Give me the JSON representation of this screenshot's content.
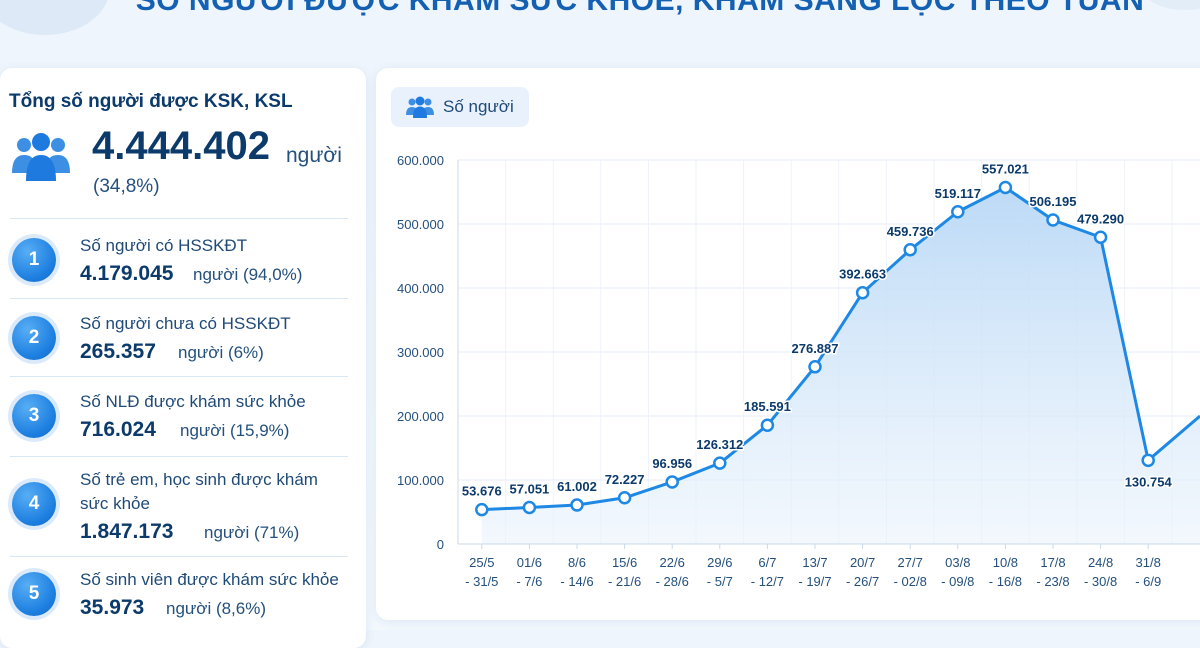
{
  "page_title": "SỐ NGƯỜI ĐƯỢC KHÁM SỨC KHỎE, KHÁM SÀNG LỌC THEO TUẦN",
  "summary": {
    "heading": "Tổng số người được KSK, KSL",
    "icon": "people-group-icon",
    "total_value": "4.444.402",
    "total_unit": "người",
    "total_percent": "(34,8%)"
  },
  "stats": [
    {
      "number": "1",
      "label": "Số người có HSSKĐT",
      "value": "4.179.045",
      "unit": "người (94,0%)"
    },
    {
      "number": "2",
      "label": "Số người chưa có HSSKĐT",
      "value": "265.357",
      "unit": "người (6%)"
    },
    {
      "number": "3",
      "label": "Số NLĐ được khám sức khỏe",
      "value": "716.024",
      "unit": "người (15,9%)"
    },
    {
      "number": "4",
      "label": "Số trẻ em, học sinh được khám sức khỏe",
      "value": "1.847.173",
      "unit": "người (71%)"
    },
    {
      "number": "5",
      "label": "Số sinh viên được khám sức khỏe",
      "value": "35.973",
      "unit": "người (8,6%)"
    }
  ],
  "colors": {
    "accent": "#1e88e5",
    "title": "#1461b3",
    "text_dark": "#0b3a6b",
    "area_fill": "#cfe4f8"
  },
  "chart_data": {
    "type": "line",
    "title": "SỐ NGƯỜI ĐƯỢC KHÁM SỨC KHỎE, KHÁM SÀNG LỌC THEO TUẦN",
    "xlabel": "",
    "ylabel": "",
    "ylim": [
      0,
      600000
    ],
    "yticks": [
      0,
      100000,
      200000,
      300000,
      400000,
      500000,
      600000
    ],
    "ytick_labels": [
      "0",
      "100.000",
      "200.000",
      "300.000",
      "400.000",
      "500.000",
      "600.000"
    ],
    "grid": true,
    "legend": {
      "label": "Số người",
      "placement": "top-left"
    },
    "categories": [
      [
        "25/5",
        "- 31/5"
      ],
      [
        "01/6",
        "- 7/6"
      ],
      [
        "8/6",
        "- 14/6"
      ],
      [
        "15/6",
        "- 21/6"
      ],
      [
        "22/6",
        "- 28/6"
      ],
      [
        "29/6",
        "- 5/7"
      ],
      [
        "6/7",
        "- 12/7"
      ],
      [
        "13/7",
        "- 19/7"
      ],
      [
        "20/7",
        "- 26/7"
      ],
      [
        "27/7",
        "- 02/8"
      ],
      [
        "03/8",
        "- 09/8"
      ],
      [
        "10/8",
        "- 16/8"
      ],
      [
        "17/8",
        "- 23/8"
      ],
      [
        "24/8",
        "- 30/8"
      ],
      [
        "31/8",
        "- 6/9"
      ]
    ],
    "series": [
      {
        "name": "Số người",
        "values": [
          53676,
          57051,
          61002,
          72227,
          96956,
          126312,
          185591,
          276887,
          392663,
          459736,
          519117,
          557021,
          506195,
          479290,
          130754
        ],
        "labels": [
          "53.676",
          "57.051",
          "61.002",
          "72.227",
          "96.956",
          "126.312",
          "185.591",
          "276.887",
          "392.663",
          "459.736",
          "519.117",
          "557.021",
          "506.195",
          "479.290",
          "130.754"
        ]
      }
    ]
  }
}
